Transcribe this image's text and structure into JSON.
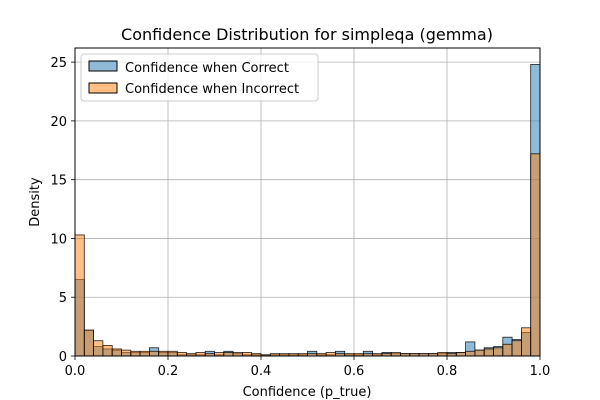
{
  "chart_data": {
    "type": "bar",
    "title": "Confidence Distribution for simpleqa (gemma)",
    "xlabel": "Confidence (p_true)",
    "ylabel": "Density",
    "xlim": [
      0.0,
      1.0
    ],
    "ylim": [
      0,
      26.2
    ],
    "xticks": [
      "0.0",
      "0.2",
      "0.4",
      "0.6",
      "0.8",
      "1.0"
    ],
    "yticks": [
      "0",
      "5",
      "10",
      "15",
      "20",
      "25"
    ],
    "grid": true,
    "legend_position": "top-left",
    "bin_width": 0.02,
    "series": [
      {
        "name": "Confidence when Correct",
        "color": "#1f77b4",
        "values": [
          6.5,
          2.2,
          0.8,
          0.6,
          0.5,
          0.3,
          0.3,
          0.3,
          0.7,
          0.3,
          0.3,
          0.1,
          0.1,
          0.1,
          0.4,
          0.1,
          0.4,
          0.2,
          0.1,
          0.1,
          0.1,
          0.1,
          0.1,
          0.1,
          0.1,
          0.4,
          0.1,
          0.1,
          0.4,
          0.1,
          0.1,
          0.4,
          0.1,
          0.3,
          0.2,
          0.2,
          0.2,
          0.2,
          0.2,
          0.2,
          0.3,
          0.3,
          1.2,
          0.5,
          0.7,
          0.8,
          1.6,
          1.4,
          2.0,
          24.8
        ]
      },
      {
        "name": "Confidence when Incorrect",
        "color": "#ff7f0e",
        "values": [
          10.3,
          2.2,
          1.3,
          0.9,
          0.6,
          0.5,
          0.4,
          0.4,
          0.4,
          0.4,
          0.4,
          0.3,
          0.2,
          0.3,
          0.2,
          0.3,
          0.3,
          0.3,
          0.3,
          0.2,
          0.1,
          0.2,
          0.2,
          0.2,
          0.2,
          0.2,
          0.2,
          0.3,
          0.2,
          0.2,
          0.2,
          0.2,
          0.2,
          0.2,
          0.3,
          0.2,
          0.2,
          0.2,
          0.2,
          0.3,
          0.2,
          0.3,
          0.4,
          0.5,
          0.6,
          0.7,
          1.0,
          1.3,
          2.4,
          17.2
        ]
      }
    ]
  }
}
